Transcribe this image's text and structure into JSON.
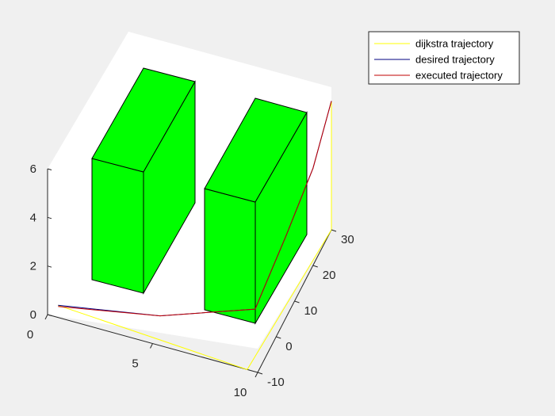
{
  "chart_data": {
    "type": "line",
    "plot_type": "3d-line-with-boxes",
    "title": "",
    "xlabel": "",
    "ylabel": "",
    "zlabel": "",
    "xlim": [
      0,
      10
    ],
    "ylim": [
      -10,
      30
    ],
    "zlim": [
      0,
      6
    ],
    "x_ticks": [
      "0",
      "5",
      "10"
    ],
    "y_ticks": [
      "-10",
      "0",
      "10",
      "20",
      "30"
    ],
    "z_ticks": [
      "0",
      "2",
      "4",
      "6"
    ],
    "grid": false,
    "legend_position": "top-right",
    "obstacles": [
      {
        "name": "obstacle-1",
        "color": "#00ff00"
      },
      {
        "name": "obstacle-2",
        "color": "#00ff00"
      }
    ],
    "series": [
      {
        "name": "dijkstra trajectory",
        "color": "#ffff00",
        "points": [
          [
            0.5,
            -10,
            0.5
          ],
          [
            9.5,
            -10,
            0.0
          ],
          [
            10.0,
            30.0,
            0.0
          ],
          [
            10.0,
            30.0,
            5.3
          ]
        ]
      },
      {
        "name": "desired trajectory",
        "color": "#000080",
        "points": [
          [
            0.5,
            -10.0,
            0.5
          ],
          [
            5.0,
            -6.0,
            0.55
          ],
          [
            9.0,
            0.0,
            0.9
          ],
          [
            9.6,
            10.0,
            2.6
          ],
          [
            10.0,
            20.0,
            4.0
          ],
          [
            10.0,
            30.0,
            5.3
          ]
        ]
      },
      {
        "name": "executed trajectory",
        "color": "#c00000",
        "points": [
          [
            0.5,
            -10.0,
            0.45
          ],
          [
            5.0,
            -6.0,
            0.55
          ],
          [
            9.0,
            0.0,
            0.9
          ],
          [
            9.6,
            10.0,
            2.6
          ],
          [
            10.0,
            20.0,
            4.0
          ],
          [
            10.0,
            30.0,
            5.3
          ]
        ]
      }
    ]
  }
}
